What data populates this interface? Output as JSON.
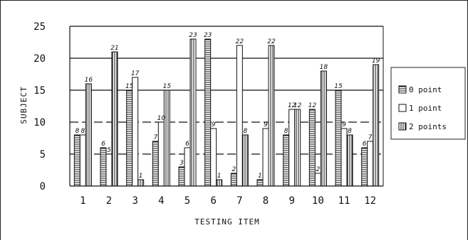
{
  "chart_data": {
    "type": "bar",
    "xlabel": "TESTING ITEM",
    "ylabel": "SUBJECT",
    "categories": [
      "1",
      "2",
      "3",
      "4",
      "5",
      "6",
      "7",
      "8",
      "9",
      "10",
      "11",
      "12"
    ],
    "ylim": [
      0,
      25
    ],
    "yticks": [
      "0",
      "5",
      "10",
      "15",
      "20",
      "25"
    ],
    "series": [
      {
        "name": "0 point",
        "pattern": "horizontal-stripes",
        "values": [
          8,
          6,
          15,
          7,
          3,
          23,
          2,
          1,
          8,
          12,
          15,
          6
        ],
        "labels": [
          "8",
          "6",
          "15",
          "7",
          "3",
          "23",
          "2",
          "1",
          "8",
          "12",
          "15",
          "6"
        ]
      },
      {
        "name": "1 point",
        "pattern": "white",
        "values": [
          8,
          5,
          17,
          10,
          6,
          9,
          22,
          9,
          12,
          2,
          9,
          7
        ],
        "labels": [
          "8",
          "5",
          "17",
          "10",
          "6",
          "9",
          "22",
          "9",
          "12",
          "2",
          "9",
          "7"
        ]
      },
      {
        "name": "2 points",
        "pattern": "vertical-stripes",
        "values": [
          16,
          21,
          1,
          15,
          23,
          1,
          8,
          22,
          12,
          18,
          8,
          19
        ],
        "labels": [
          "16",
          "21",
          "1",
          "15",
          "23",
          "1",
          "8",
          "22",
          "12",
          "18",
          "8",
          "19"
        ]
      }
    ],
    "legend_labels": [
      "0 point",
      "1 point",
      "2 points"
    ],
    "gridlines": "horizontal",
    "legend_position": "right",
    "colors": {
      "bars": "#111111",
      "background": "#ffffff",
      "grid": "#000000"
    }
  }
}
